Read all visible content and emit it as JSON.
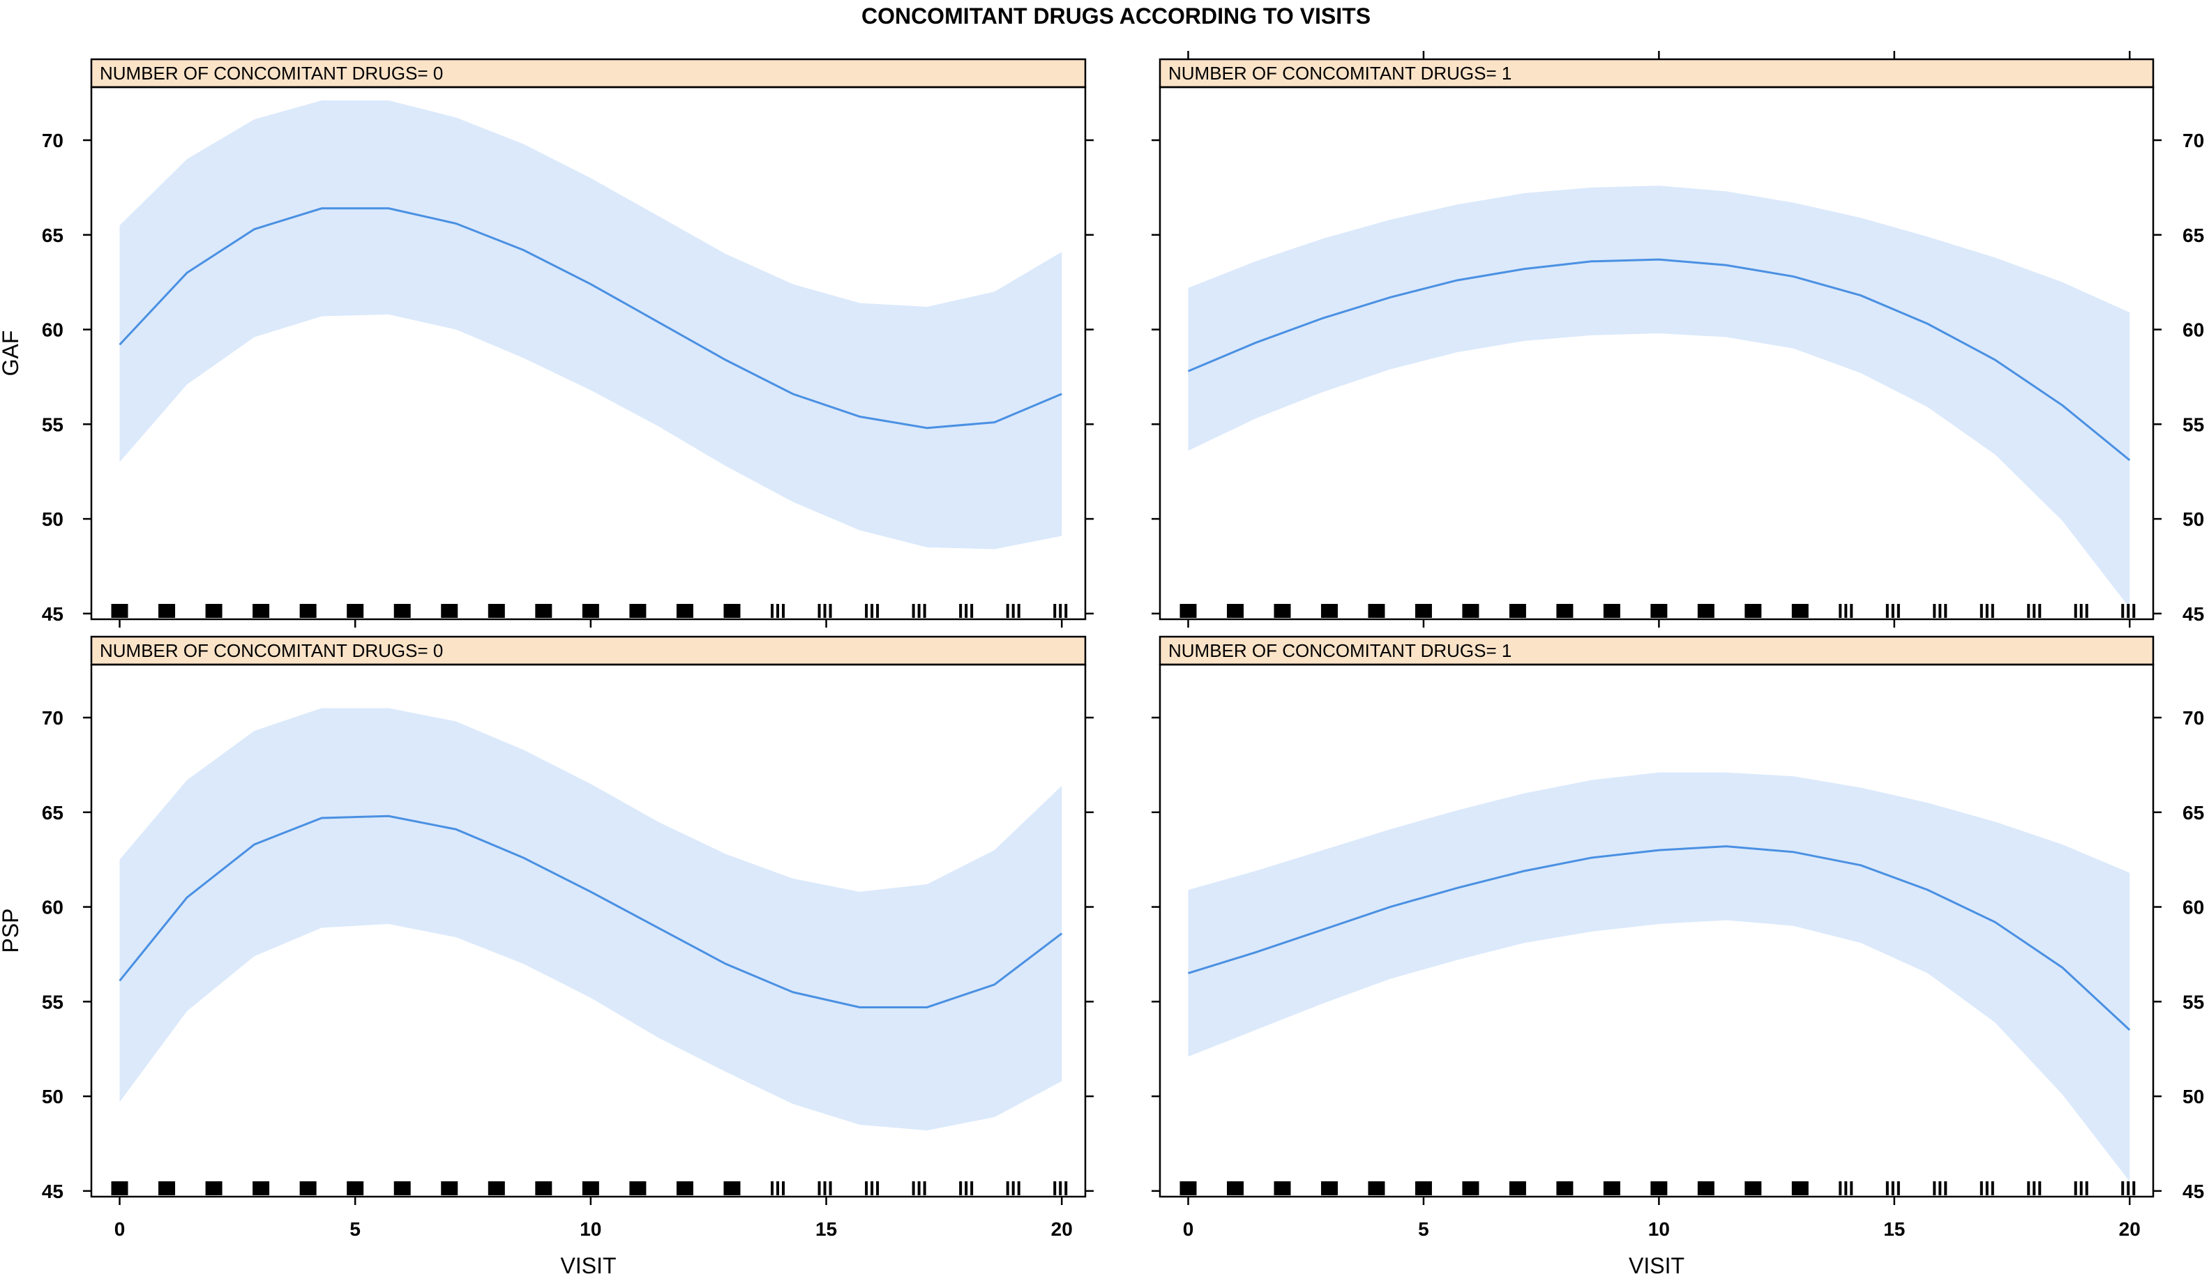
{
  "chart_data": {
    "type": "line",
    "title": "CONCOMITANT DRUGS ACCORDING TO VISITS",
    "colors": {
      "line": "#4a90e2",
      "band": "#dbe9fb",
      "strip": "#fbe3c8",
      "rug": "#000000"
    },
    "grid": false,
    "x": [
      0,
      1.43,
      2.86,
      4.29,
      5.71,
      7.14,
      8.57,
      10,
      11.43,
      12.86,
      14.29,
      15.71,
      17.14,
      18.57,
      20
    ],
    "xticks": [
      "0",
      "5",
      "10",
      "15",
      "20"
    ],
    "xtick_values": [
      0,
      5,
      10,
      15,
      20
    ],
    "yticks": [
      "45",
      "50",
      "55",
      "60",
      "65",
      "70"
    ],
    "ytick_values": [
      45,
      50,
      55,
      60,
      65,
      70
    ],
    "xlim": [
      -0.6,
      20.5
    ],
    "ylim": [
      44.7,
      72.8
    ],
    "xlabel": "VISIT",
    "rug_visits": [
      0,
      1,
      2,
      3,
      4,
      5,
      6,
      7,
      8,
      9,
      10,
      11,
      12,
      13,
      14,
      15,
      16,
      17,
      18,
      19,
      20
    ],
    "panels": [
      {
        "strip": "NUMBER OF CONCOMITANT DRUGS= 0",
        "ylabel": "GAF",
        "row": 0,
        "col": 0,
        "fit": [
          59.2,
          63.0,
          65.3,
          66.4,
          66.4,
          65.6,
          64.2,
          62.4,
          60.4,
          58.4,
          56.6,
          55.4,
          54.8,
          55.1,
          56.6
        ],
        "upper": [
          65.5,
          69.0,
          71.1,
          72.1,
          72.1,
          71.2,
          69.8,
          68.0,
          66.0,
          64.0,
          62.4,
          61.4,
          61.2,
          62.0,
          64.1
        ],
        "lower": [
          53.0,
          57.1,
          59.6,
          60.7,
          60.8,
          60.0,
          58.5,
          56.8,
          54.9,
          52.8,
          50.9,
          49.4,
          48.5,
          48.4,
          49.1
        ]
      },
      {
        "strip": "NUMBER OF CONCOMITANT DRUGS= 1",
        "ylabel": "",
        "row": 0,
        "col": 1,
        "fit": [
          57.8,
          59.3,
          60.6,
          61.7,
          62.6,
          63.2,
          63.6,
          63.7,
          63.4,
          62.8,
          61.8,
          60.3,
          58.4,
          56.0,
          53.1
        ],
        "upper": [
          62.2,
          63.6,
          64.8,
          65.8,
          66.6,
          67.2,
          67.5,
          67.6,
          67.3,
          66.7,
          65.9,
          64.9,
          63.8,
          62.5,
          60.9
        ],
        "lower": [
          53.6,
          55.3,
          56.7,
          57.9,
          58.8,
          59.4,
          59.7,
          59.8,
          59.6,
          59.0,
          57.7,
          55.9,
          53.4,
          49.9,
          45.3
        ]
      },
      {
        "strip": "NUMBER OF CONCOMITANT DRUGS= 0",
        "ylabel": "PSP",
        "row": 1,
        "col": 0,
        "fit": [
          56.1,
          60.5,
          63.3,
          64.7,
          64.8,
          64.1,
          62.6,
          60.8,
          58.9,
          57.0,
          55.5,
          54.7,
          54.7,
          55.9,
          58.6
        ],
        "upper": [
          62.5,
          66.7,
          69.3,
          70.5,
          70.5,
          69.8,
          68.3,
          66.5,
          64.5,
          62.8,
          61.5,
          60.8,
          61.2,
          63.0,
          66.4
        ],
        "lower": [
          49.7,
          54.5,
          57.4,
          58.9,
          59.1,
          58.4,
          57.0,
          55.2,
          53.1,
          51.3,
          49.6,
          48.5,
          48.2,
          48.9,
          50.8
        ]
      },
      {
        "strip": "NUMBER OF CONCOMITANT DRUGS= 1",
        "ylabel": "",
        "row": 1,
        "col": 1,
        "fit": [
          56.5,
          57.6,
          58.8,
          60.0,
          61.0,
          61.9,
          62.6,
          63.0,
          63.2,
          62.9,
          62.2,
          60.9,
          59.2,
          56.8,
          53.5
        ],
        "upper": [
          60.9,
          61.9,
          63.0,
          64.1,
          65.1,
          66.0,
          66.7,
          67.1,
          67.1,
          66.9,
          66.3,
          65.5,
          64.5,
          63.3,
          61.8
        ],
        "lower": [
          52.1,
          53.5,
          54.9,
          56.2,
          57.2,
          58.1,
          58.7,
          59.1,
          59.3,
          59.0,
          58.1,
          56.5,
          53.9,
          50.1,
          45.5
        ]
      }
    ]
  }
}
